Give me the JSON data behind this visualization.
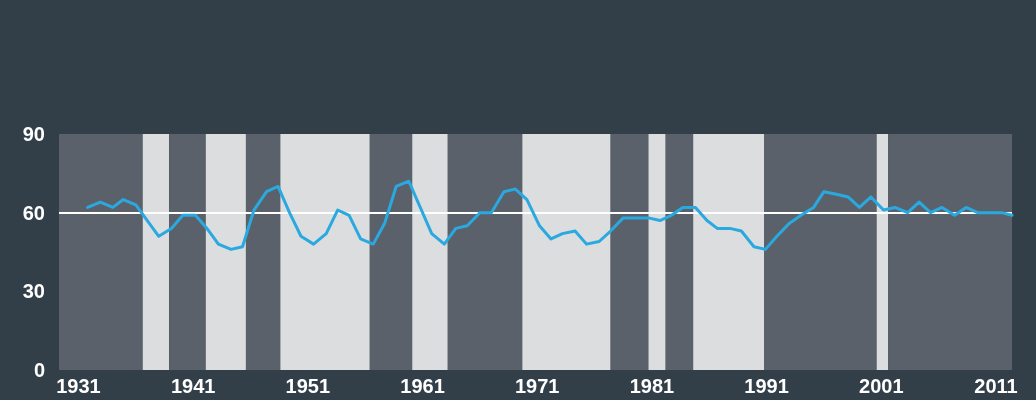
{
  "chart_data": {
    "type": "line",
    "x": [
      1931.8,
      1932.9,
      1934.0,
      1934.9,
      1936.0,
      1937.0,
      1938.0,
      1939.1,
      1940.1,
      1941.2,
      1942.2,
      1943.2,
      1944.3,
      1945.3,
      1946.3,
      1947.4,
      1948.4,
      1949.4,
      1950.4,
      1951.5,
      1952.6,
      1953.6,
      1954.6,
      1955.6,
      1956.7,
      1957.7,
      1958.7,
      1959.8,
      1960.8,
      1961.8,
      1962.9,
      1963.9,
      1964.9,
      1966.0,
      1967.0,
      1968.1,
      1969.1,
      1970.1,
      1971.2,
      1972.2,
      1973.2,
      1974.3,
      1975.3,
      1976.4,
      1977.4,
      1978.5,
      1979.6,
      1980.7,
      1981.7,
      1982.7,
      1983.7,
      1984.8,
      1985.8,
      1986.7,
      1987.8,
      1988.8,
      1989.9,
      1990.9,
      1991.9,
      1993.0,
      1994.0,
      1995.1,
      1996.0,
      1997.1,
      1998.1,
      1999.1,
      2000.1,
      2001.2,
      2002.2,
      2003.3,
      2004.3,
      2005.3,
      2006.3,
      2007.4,
      2008.4,
      2009.4,
      2010.5,
      2011.5,
      2012.4
    ],
    "series": [
      {
        "color": "#29a9e0",
        "values": [
          62,
          64,
          62,
          65,
          63,
          57,
          51,
          54,
          59,
          59,
          54,
          48,
          46,
          47,
          61,
          68,
          70,
          60,
          51,
          48,
          52,
          61,
          59,
          50,
          48,
          56,
          70,
          72,
          62,
          52,
          48,
          54,
          55,
          60,
          60,
          68,
          69,
          65,
          55,
          50,
          52,
          53,
          48,
          49,
          53,
          58,
          58,
          58,
          57,
          59,
          62,
          62,
          57,
          54,
          54,
          53,
          47,
          46,
          51,
          56,
          59,
          62,
          68,
          67,
          66,
          62,
          66,
          61,
          62,
          60,
          64,
          60,
          62,
          59,
          62,
          60,
          60,
          60,
          59
        ]
      }
    ],
    "xlim": [
      1929.3,
      2012.4
    ],
    "xticks": [
      1931,
      1941,
      1951,
      1961,
      1971,
      1981,
      1991,
      2001,
      2011
    ],
    "ylim": [
      0,
      90
    ],
    "yticks": [
      0,
      30,
      60,
      90
    ],
    "grid": false,
    "marker": "none",
    "line_style": "solid",
    "ref_lines": [
      {
        "axis": "y",
        "value": 60,
        "color": "#ffffff"
      }
    ],
    "bands": [
      {
        "axis": "x",
        "from": 1929.3,
        "to": 1936.6,
        "color": "#5a616a"
      },
      {
        "axis": "x",
        "from": 1936.6,
        "to": 1938.9,
        "color": "#dcdddf"
      },
      {
        "axis": "x",
        "from": 1938.9,
        "to": 1942.1,
        "color": "#5a616a"
      },
      {
        "axis": "x",
        "from": 1942.1,
        "to": 1945.6,
        "color": "#dcdddf"
      },
      {
        "axis": "x",
        "from": 1945.6,
        "to": 1948.6,
        "color": "#5a616a"
      },
      {
        "axis": "x",
        "from": 1948.6,
        "to": 1956.4,
        "color": "#dcdddf"
      },
      {
        "axis": "x",
        "from": 1956.4,
        "to": 1960.1,
        "color": "#5a616a"
      },
      {
        "axis": "x",
        "from": 1960.1,
        "to": 1963.2,
        "color": "#dcdddf"
      },
      {
        "axis": "x",
        "from": 1963.2,
        "to": 1969.7,
        "color": "#5a616a"
      },
      {
        "axis": "x",
        "from": 1969.7,
        "to": 1977.4,
        "color": "#dcdddf"
      },
      {
        "axis": "x",
        "from": 1977.4,
        "to": 1980.7,
        "color": "#5a616a"
      },
      {
        "axis": "x",
        "from": 1980.7,
        "to": 1982.2,
        "color": "#dcdddf"
      },
      {
        "axis": "x",
        "from": 1982.2,
        "to": 1984.6,
        "color": "#5a616a"
      },
      {
        "axis": "x",
        "from": 1984.6,
        "to": 1990.8,
        "color": "#dcdddf"
      },
      {
        "axis": "x",
        "from": 1990.8,
        "to": 2000.6,
        "color": "#5a616a"
      },
      {
        "axis": "x",
        "from": 2000.6,
        "to": 2001.6,
        "color": "#dcdddf"
      },
      {
        "axis": "x",
        "from": 2001.6,
        "to": 2012.4,
        "color": "#5a616a"
      }
    ]
  }
}
